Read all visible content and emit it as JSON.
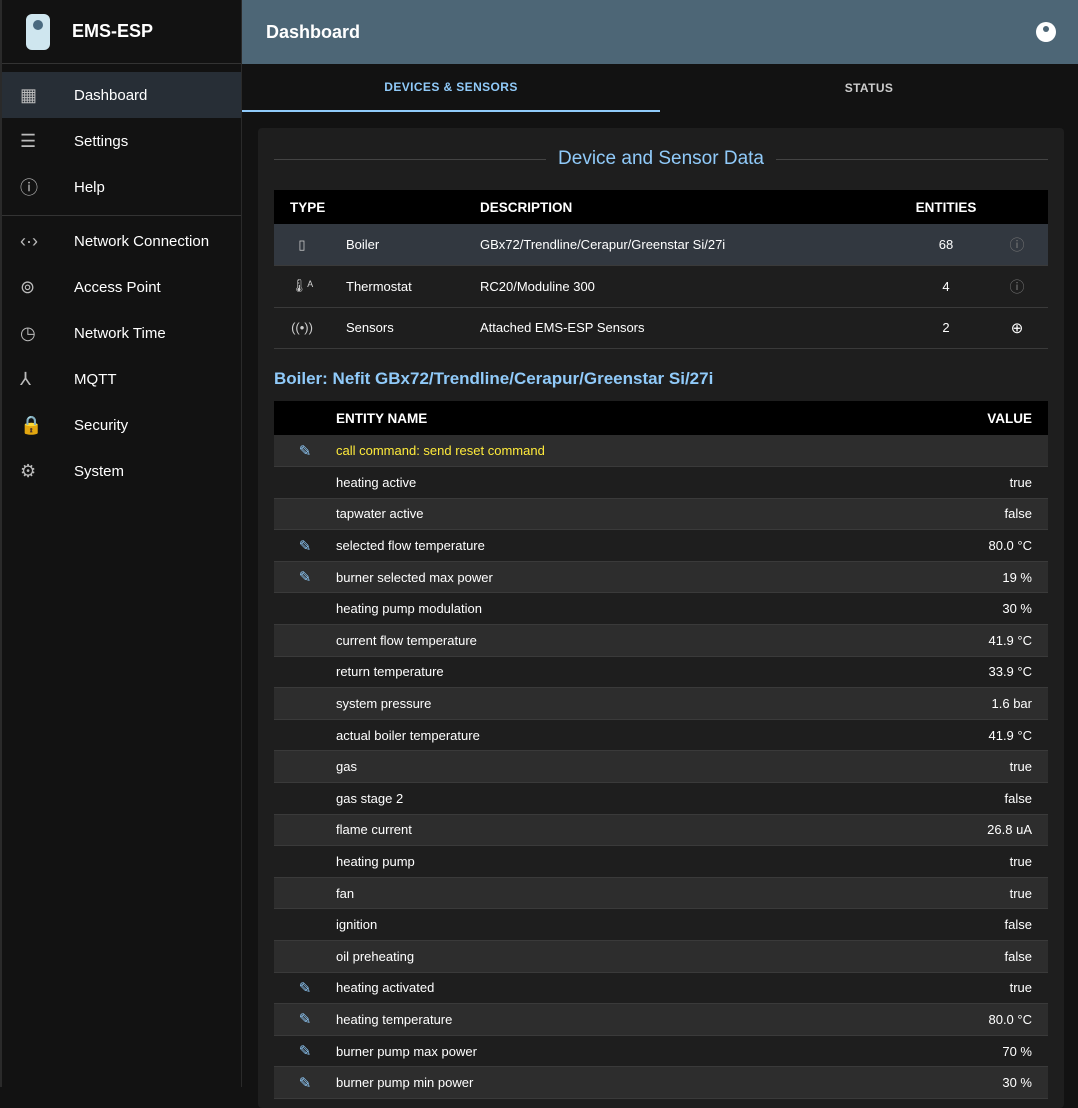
{
  "app": {
    "title": "EMS-ESP",
    "page_title": "Dashboard"
  },
  "sidebar": {
    "items": [
      {
        "label": "Dashboard",
        "icon": "dashboard-icon",
        "glyph": "▦",
        "active": true
      },
      {
        "label": "Settings",
        "icon": "tune-icon",
        "glyph": "☰"
      },
      {
        "label": "Help",
        "icon": "info-icon",
        "glyph": "ⓘ"
      },
      {
        "label": "Network Connection",
        "icon": "settings-ethernet-icon",
        "glyph": "‹·›"
      },
      {
        "label": "Access Point",
        "icon": "antenna-icon",
        "glyph": "⊚"
      },
      {
        "label": "Network Time",
        "icon": "clock-icon",
        "glyph": "◷"
      },
      {
        "label": "MQTT",
        "icon": "device-hub-icon",
        "glyph": "⅄"
      },
      {
        "label": "Security",
        "icon": "lock-icon",
        "glyph": "🔒"
      },
      {
        "label": "System",
        "icon": "gear-icon",
        "glyph": "⚙"
      }
    ]
  },
  "tabs": [
    {
      "label": "DEVICES & SENSORS",
      "active": true
    },
    {
      "label": "STATUS"
    }
  ],
  "card": {
    "title": "Device and Sensor Data",
    "device_headers": [
      "TYPE",
      "DESCRIPTION",
      "ENTITIES"
    ],
    "devices": [
      {
        "icon": "boiler-icon",
        "glyph": "▯",
        "type": "Boiler",
        "description": "GBx72/Trendline/Cerapur/Greenstar Si/27i",
        "entities": "68",
        "action": "info-icon",
        "action_glyph": "ⓘ"
      },
      {
        "icon": "thermostat-icon",
        "glyph": "🌡ᴬ",
        "type": "Thermostat",
        "description": "RC20/Moduline 300",
        "entities": "4",
        "action": "info-icon",
        "action_glyph": "ⓘ"
      },
      {
        "icon": "sensors-icon",
        "glyph": "((•))",
        "type": "Sensors",
        "description": "Attached EMS-ESP Sensors",
        "entities": "2",
        "action": "add-circle-icon",
        "action_glyph": "⊕"
      }
    ],
    "selected_title": "Boiler: Nefit GBx72/Trendline/Cerapur/Greenstar Si/27i",
    "entity_headers": [
      "ENTITY NAME",
      "VALUE"
    ],
    "entities": [
      {
        "name": "call command: send reset command",
        "value": "",
        "editable": true,
        "command": true
      },
      {
        "name": "heating active",
        "value": "true"
      },
      {
        "name": "tapwater active",
        "value": "false"
      },
      {
        "name": "selected flow temperature",
        "value": "80.0 °C",
        "editable": true
      },
      {
        "name": "burner selected max power",
        "value": "19 %",
        "editable": true
      },
      {
        "name": "heating pump modulation",
        "value": "30 %"
      },
      {
        "name": "current flow temperature",
        "value": "41.9 °C"
      },
      {
        "name": "return temperature",
        "value": "33.9 °C"
      },
      {
        "name": "system pressure",
        "value": "1.6 bar"
      },
      {
        "name": "actual boiler temperature",
        "value": "41.9 °C"
      },
      {
        "name": "gas",
        "value": "true"
      },
      {
        "name": "gas stage 2",
        "value": "false"
      },
      {
        "name": "flame current",
        "value": "26.8 uA"
      },
      {
        "name": "heating pump",
        "value": "true"
      },
      {
        "name": "fan",
        "value": "true"
      },
      {
        "name": "ignition",
        "value": "false"
      },
      {
        "name": "oil preheating",
        "value": "false"
      },
      {
        "name": "heating activated",
        "value": "true",
        "editable": true
      },
      {
        "name": "heating temperature",
        "value": "80.0 °C",
        "editable": true
      },
      {
        "name": "burner pump max power",
        "value": "70 %",
        "editable": true
      },
      {
        "name": "burner pump min power",
        "value": "30 %",
        "editable": true
      }
    ]
  },
  "colors": {
    "accent": "#90caf9",
    "header": "#4d6676",
    "command": "#ffeb3b"
  }
}
